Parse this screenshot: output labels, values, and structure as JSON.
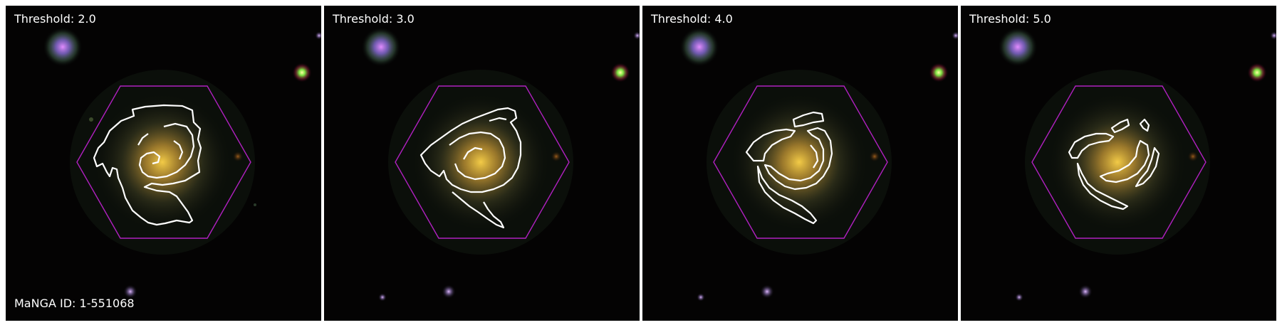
{
  "image": {
    "subject": "spiral galaxy with white arm-tracing contours and magenta hexagonal IFU footprint, shown at four threshold levels",
    "manga_id_label": "MaNGA ID: 1-551068",
    "colors": {
      "background": "#ffffff",
      "sky": "#040303",
      "contour": "#ffffff",
      "hexagon": "#b020c0",
      "galaxy_core": "#d9a23a",
      "label_text": "#ffffff"
    },
    "panels": [
      {
        "threshold_label": "Threshold: 2.0"
      },
      {
        "threshold_label": "Threshold: 3.0"
      },
      {
        "threshold_label": "Threshold: 4.0"
      },
      {
        "threshold_label": "Threshold: 5.0"
      }
    ]
  }
}
